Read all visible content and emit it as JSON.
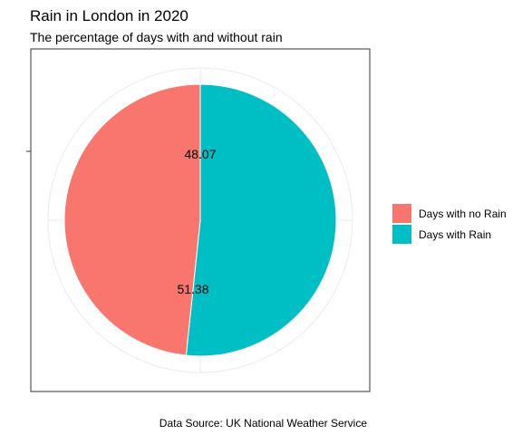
{
  "chart_data": {
    "type": "pie",
    "title": "Rain in London in 2020",
    "subtitle": "The percentage of days with and without rain",
    "caption": "Data Source: UK National Weather Service",
    "series": [
      {
        "name": "Days with no Rain",
        "value": 48.07,
        "label": "48.07",
        "color": "#F8766D"
      },
      {
        "name": "Days with Rain",
        "value": 51.38,
        "label": "51.38",
        "color": "#00BFC4"
      }
    ],
    "start": "12 o'clock",
    "direction": "clockwise",
    "first_slice": "Days with Rain",
    "grid": true,
    "panel_border": true,
    "legend_position": "right"
  }
}
